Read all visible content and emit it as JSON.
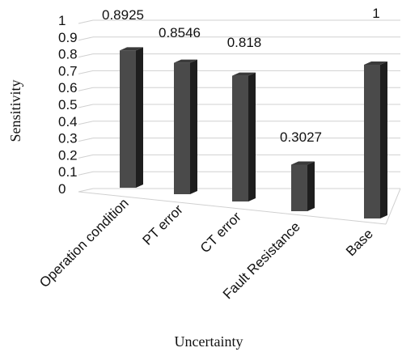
{
  "chart_data": {
    "type": "bar",
    "categories": [
      "Operation condition",
      "PT error",
      "CT error",
      "Fault Resistance",
      "Base"
    ],
    "values": [
      0.8925,
      0.8546,
      0.818,
      0.3027,
      1
    ],
    "data_labels": [
      "0.8925",
      "0.8546",
      "0.818",
      "0.3027",
      "1"
    ],
    "xlabel": "Uncertainty",
    "ylabel": "Sensitivity",
    "ylim": [
      0,
      1
    ],
    "yticks": [
      "0",
      "0.1",
      "0.2",
      "0.3",
      "0.4",
      "0.5",
      "0.6",
      "0.7",
      "0.8",
      "0.9",
      "1"
    ],
    "grid": true,
    "legend": "none",
    "bar_color": "#4a4a4a",
    "bar_side_color": "#1e1e1e",
    "grid_color": "#d0d0d0"
  }
}
